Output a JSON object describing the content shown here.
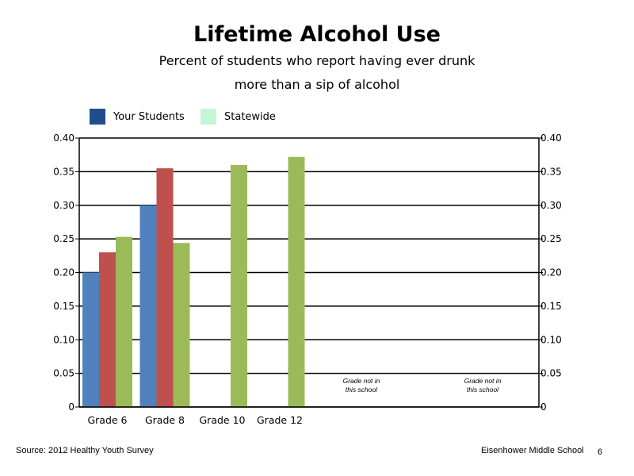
{
  "title": "Lifetime Alcohol Use",
  "subtitle_lines": [
    "Percent of students who report having ever drunk",
    "more than a sip of alcohol"
  ],
  "legend": [
    {
      "label": "Your Students",
      "color": "#1f4e8c"
    },
    {
      "label": "Statewide",
      "color": "#c6f5d5"
    }
  ],
  "chart_data": {
    "type": "bar",
    "categories": [
      "Grade 6",
      "Grade 8",
      "Grade 10",
      "Grade 12",
      "",
      ""
    ],
    "series": [
      {
        "color": "#4f81bd",
        "values": [
          0.2,
          0.3,
          null,
          null,
          null,
          null
        ]
      },
      {
        "color": "#c0504d",
        "values": [
          0.23,
          0.355,
          null,
          null,
          null,
          null
        ]
      },
      {
        "color": "#9bbb59",
        "values": [
          0.253,
          0.244,
          0.36,
          0.372,
          null,
          null
        ]
      }
    ],
    "ylim": [
      0,
      0.4
    ],
    "yticks": [
      "0",
      "0.05",
      "0.10",
      "0.15",
      "0.20",
      "0.25",
      "0.30",
      "0.35",
      "0.40"
    ],
    "grid": true,
    "annotations": [
      {
        "category_index": 4,
        "lines": [
          "Grade not in",
          "this school"
        ]
      },
      {
        "category_index": 5,
        "lines": [
          "Grade not in",
          "this school"
        ]
      }
    ]
  },
  "footer": {
    "source": "Source: 2012 Healthy Youth Survey",
    "school": "Eisenhower Middle  School",
    "page": "6"
  }
}
